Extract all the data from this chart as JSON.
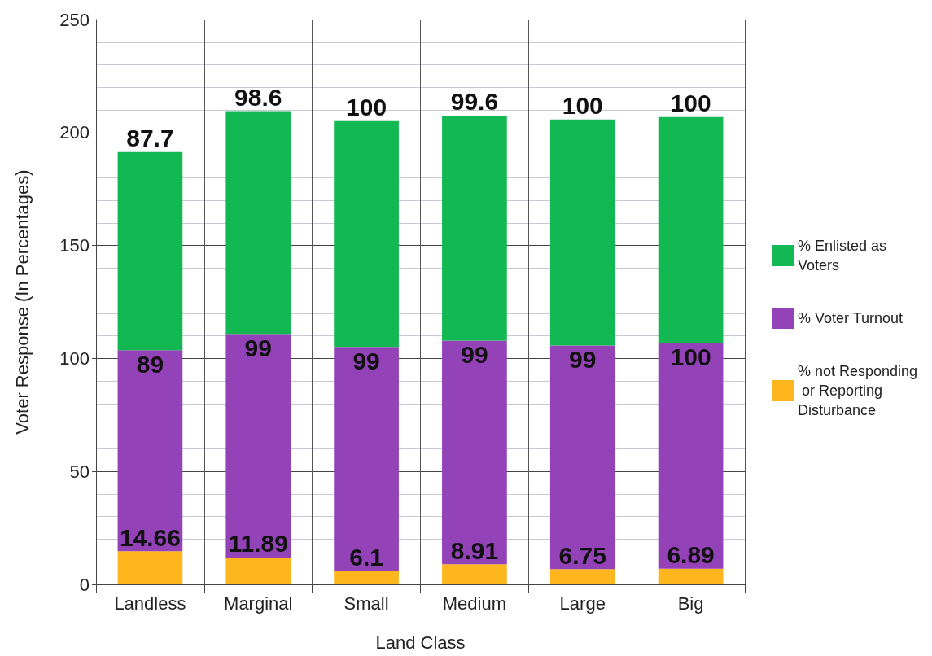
{
  "chart_data": {
    "type": "bar",
    "stacked": true,
    "xlabel": "Land Class",
    "ylabel": "Voter Response (In Percentages)",
    "categories": [
      "Landless",
      "Marginal",
      "Small",
      "Medium",
      "Large",
      "Big"
    ],
    "series": [
      {
        "name": "% not Responding or Reporting Disturbance",
        "color": "#fdb61d",
        "values": [
          14.66,
          11.89,
          6.1,
          8.91,
          6.75,
          6.89
        ]
      },
      {
        "name": "% Voter Turnout",
        "color": "#9342b8",
        "values": [
          89,
          99,
          99,
          99,
          99,
          100
        ]
      },
      {
        "name": "% Enlisted as Voters",
        "color": "#12b852",
        "values": [
          87.7,
          98.6,
          100,
          99.6,
          100,
          100
        ]
      }
    ],
    "ylim": [
      0,
      250
    ],
    "yticks": [
      0,
      50,
      100,
      150,
      200,
      250
    ],
    "grid": true,
    "legend": "right",
    "data_labels": true
  }
}
